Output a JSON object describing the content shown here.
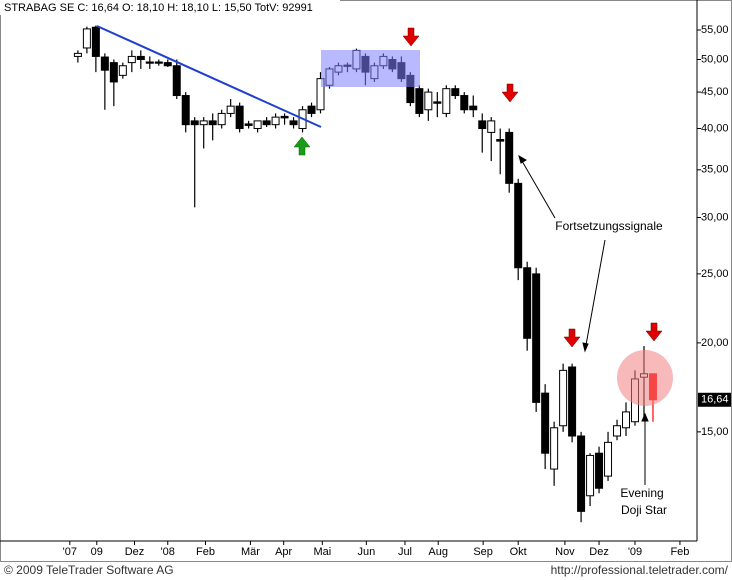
{
  "chart_data": {
    "type": "candlestick",
    "title": "STRABAG SE C: 16,64 O: 18,10 H: 18,10 L: 15,50 TotV: 92991",
    "x": [
      0,
      1,
      2,
      3,
      4,
      5,
      6,
      7,
      8,
      9,
      10,
      11,
      12,
      13,
      14,
      15,
      16,
      17,
      18,
      19,
      20,
      21,
      22,
      23,
      24,
      25,
      26,
      27,
      28,
      29,
      30,
      31,
      32,
      33,
      34,
      35,
      36,
      37,
      38,
      39,
      40,
      41,
      42,
      43,
      44,
      45,
      46,
      47,
      48,
      49,
      50,
      51,
      52,
      53,
      54,
      55,
      56,
      57,
      58,
      59,
      60,
      61,
      62,
      63,
      64
    ],
    "open": [
      50.5,
      51.9,
      55.5,
      50.4,
      49.5,
      47.5,
      49.5,
      50.5,
      49.6,
      49.6,
      49.5,
      49,
      44.5,
      41,
      40.5,
      41,
      40.5,
      42,
      43,
      40.6,
      40,
      41,
      40.5,
      41.6,
      41,
      40,
      43,
      42.5,
      46,
      48,
      49.1,
      48.5,
      50.5,
      47,
      49,
      50,
      49.5,
      47.5,
      45.5,
      42.5,
      43.6,
      42,
      45.5,
      44.5,
      43,
      41,
      39.5,
      38.6,
      39.5,
      33.5,
      25.5,
      25,
      17,
      13.3,
      15.3,
      18.5,
      14.8,
      12.2,
      14,
      13,
      14.8,
      15.2,
      15.5,
      17.9,
      18.1
    ],
    "high": [
      51.5,
      55.6,
      55.8,
      51,
      50,
      49.5,
      51.5,
      51.5,
      50.5,
      50,
      50,
      50,
      45,
      41.5,
      41.5,
      42,
      42.5,
      44,
      43.5,
      41,
      41,
      41.5,
      42,
      42,
      41.5,
      43,
      43.5,
      48,
      48.8,
      49.5,
      49.5,
      51.8,
      51,
      49.5,
      51,
      50.5,
      50.5,
      48,
      46,
      45.5,
      45,
      46,
      46,
      45,
      44.5,
      42,
      41.5,
      40,
      40,
      34,
      26,
      25.5,
      17.5,
      15.5,
      18.7,
      18.7,
      15,
      14,
      14.3,
      15,
      15.6,
      16.5,
      18.3,
      19.8,
      18.1
    ],
    "low": [
      49.5,
      51,
      48,
      42.5,
      43,
      47,
      48,
      48.5,
      48.5,
      49,
      48.8,
      44,
      39.5,
      31,
      37.5,
      38.5,
      40,
      41.5,
      39.5,
      40,
      39.5,
      40.2,
      40,
      40.5,
      40,
      39.5,
      41.5,
      42,
      45.5,
      47.5,
      48,
      48,
      46,
      46.5,
      48.5,
      48,
      46.5,
      43,
      41.5,
      41,
      41.5,
      41.5,
      44,
      42,
      41.5,
      37,
      36,
      34.5,
      32.5,
      24.5,
      19.5,
      16,
      13.3,
      12.6,
      15,
      14.5,
      11.2,
      11.8,
      12.3,
      12.8,
      14.6,
      14.8,
      15.3,
      15.6,
      15.5
    ],
    "close": [
      51,
      55.2,
      50.5,
      48.3,
      46.5,
      49,
      50.5,
      50,
      49.4,
      49.4,
      49,
      44.5,
      40.5,
      40.5,
      41,
      40.5,
      42,
      43,
      40,
      40.4,
      41,
      40.5,
      41.5,
      41.4,
      40.5,
      42.5,
      42,
      47,
      48.5,
      49,
      48.9,
      51.5,
      48,
      49,
      50.5,
      48.5,
      47,
      43.5,
      42,
      45,
      43.4,
      45.5,
      44.5,
      42.5,
      42.5,
      40,
      41,
      38.4,
      33.5,
      25.5,
      20.3,
      16.5,
      14,
      15.2,
      18.3,
      14.8,
      11.6,
      13.9,
      12.5,
      14.5,
      15.3,
      16,
      17.8,
      18.1,
      16.64
    ],
    "up_color": "#ffffff",
    "down_color": "#000000",
    "last_color": "#ff0000",
    "log_scale": true,
    "xlim": [
      -8.67,
      68.9
    ],
    "ylim": [
      10.54,
      58.3
    ],
    "xticks": [
      {
        "value": -0.9,
        "label": "'07"
      },
      {
        "value": 2.1,
        "label": "09"
      },
      {
        "value": 6.3,
        "label": "Dez"
      },
      {
        "value": 10,
        "label": "'08"
      },
      {
        "value": 14.2,
        "label": "Feb"
      },
      {
        "value": 19.2,
        "label": "Mär"
      },
      {
        "value": 22.9,
        "label": "Apr"
      },
      {
        "value": 27.2,
        "label": "Mai"
      },
      {
        "value": 32.1,
        "label": "Jun"
      },
      {
        "value": 36.4,
        "label": "Jul"
      },
      {
        "value": 40.1,
        "label": "Aug"
      },
      {
        "value": 45.1,
        "label": "Sep"
      },
      {
        "value": 49,
        "label": "Okt"
      },
      {
        "value": 54.2,
        "label": "Nov"
      },
      {
        "value": 58,
        "label": "Dez"
      },
      {
        "value": 62,
        "label": "'09"
      },
      {
        "value": 67,
        "label": "Feb"
      }
    ],
    "yticks": [
      {
        "value": 15,
        "label": "15,00"
      },
      {
        "value": 20,
        "label": "20,00"
      },
      {
        "value": 25,
        "label": "25,00"
      },
      {
        "value": 30,
        "label": "30,00"
      },
      {
        "value": 35,
        "label": "35,00"
      },
      {
        "value": 40,
        "label": "40,00"
      },
      {
        "value": 45,
        "label": "45,00"
      },
      {
        "value": 50,
        "label": "50,00"
      },
      {
        "value": 55,
        "label": "55,00"
      }
    ],
    "last_price": {
      "value": 16.64,
      "label": "16,64"
    },
    "annotations": {
      "signals": "Fortsetzungssignale",
      "pattern": [
        "Evening",
        "Doji Star"
      ]
    }
  },
  "footer": {
    "copyright": "© 2009 TeleTrader Software AG",
    "url": "http://professional.teletrader.com/"
  }
}
